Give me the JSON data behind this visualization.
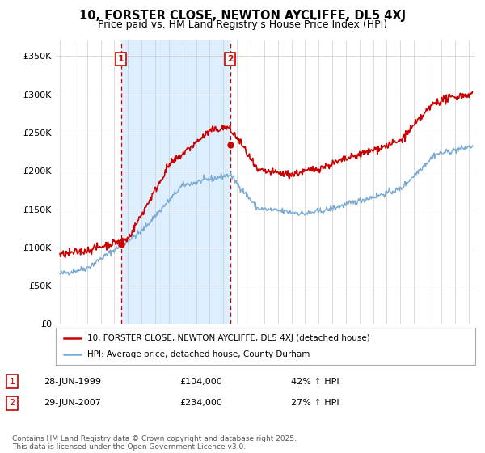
{
  "title": "10, FORSTER CLOSE, NEWTON AYCLIFFE, DL5 4XJ",
  "subtitle": "Price paid vs. HM Land Registry's House Price Index (HPI)",
  "ylim": [
    0,
    370000
  ],
  "yticks": [
    0,
    50000,
    100000,
    150000,
    200000,
    250000,
    300000,
    350000
  ],
  "ytick_labels": [
    "£0",
    "£50K",
    "£100K",
    "£150K",
    "£200K",
    "£250K",
    "£300K",
    "£350K"
  ],
  "sale1_date": 1999.49,
  "sale1_price": 104000,
  "sale1_label": "1",
  "sale2_date": 2007.49,
  "sale2_price": 234000,
  "sale2_label": "2",
  "red_color": "#cc0000",
  "blue_color": "#7aaad4",
  "shade_color": "#ddeeff",
  "legend_entry1": "10, FORSTER CLOSE, NEWTON AYCLIFFE, DL5 4XJ (detached house)",
  "legend_entry2": "HPI: Average price, detached house, County Durham",
  "note1_date": "28-JUN-1999",
  "note1_price": "£104,000",
  "note1_hpi": "42% ↑ HPI",
  "note2_date": "29-JUN-2007",
  "note2_price": "£234,000",
  "note2_hpi": "27% ↑ HPI",
  "footer": "Contains HM Land Registry data © Crown copyright and database right 2025.\nThis data is licensed under the Open Government Licence v3.0.",
  "bg_color": "#ffffff",
  "grid_color": "#cccccc",
  "title_fontsize": 10.5,
  "subtitle_fontsize": 9
}
